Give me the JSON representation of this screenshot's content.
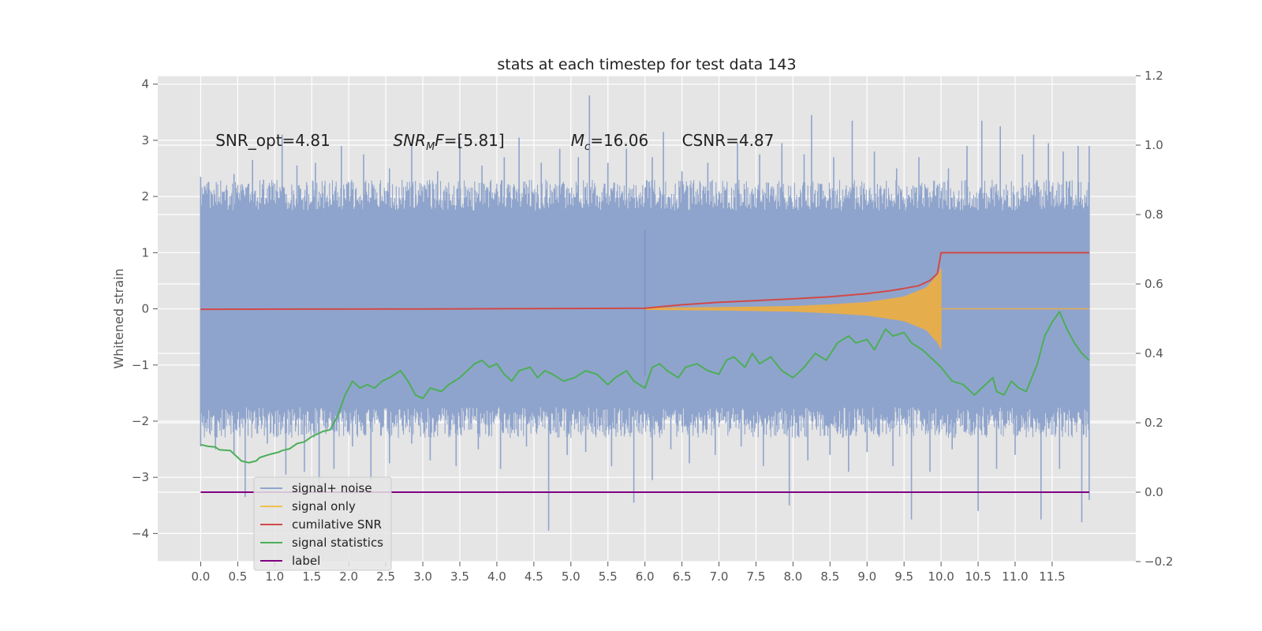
{
  "chart_data": {
    "type": "line",
    "title": "stats at each timestep for test data 143",
    "ylabel": "Whitened strain",
    "xlabel": "",
    "xlim": [
      -0.58,
      12.63
    ],
    "ylim": [
      -4.5,
      4.15
    ],
    "y2lim": [
      -0.2,
      1.2
    ],
    "x_ticks": [
      "0.0",
      "0.5",
      "1.0",
      "1.5",
      "2.0",
      "2.5",
      "3.0",
      "3.5",
      "4.0",
      "4.5",
      "5.0",
      "5.5",
      "6.0",
      "6.5",
      "7.0",
      "7.5",
      "8.0",
      "8.5",
      "9.0",
      "9.5",
      "10.0",
      "10.5",
      "11.0",
      "11.5"
    ],
    "y_ticks": [
      "4",
      "3",
      "2",
      "1",
      "0",
      "−1",
      "−2",
      "−3",
      "−4"
    ],
    "y2_ticks": [
      "1.2",
      "1.0",
      "0.8",
      "0.6",
      "0.4",
      "0.2",
      "0.0",
      "−0.2"
    ],
    "grid": true,
    "legend_position": "lower-left",
    "annotations": [
      {
        "parts": [
          {
            "t": "SNR_opt=4.81"
          }
        ],
        "x": 0.2,
        "y": 2.9
      },
      {
        "parts": [
          {
            "t": "SNR",
            "i": true
          },
          {
            "t": "M",
            "i": true,
            "sub": true
          },
          {
            "t": "F",
            "i": true
          },
          {
            "t": "=[5.81]"
          }
        ],
        "x": 2.6,
        "y": 2.9
      },
      {
        "parts": [
          {
            "t": "M",
            "i": true
          },
          {
            "t": "c",
            "i": true,
            "sub": true
          },
          {
            "t": "=16.06"
          }
        ],
        "x": 5.0,
        "y": 2.9
      },
      {
        "parts": [
          {
            "t": "CSNR=4.87"
          }
        ],
        "x": 6.5,
        "y": 2.9
      }
    ],
    "series": [
      {
        "name": "signal+ noise",
        "axis": "left",
        "color": "#8fa4cc",
        "style": "noise",
        "x_range": [
          0.0,
          12.0
        ],
        "bulk": [
          -1.75,
          1.75
        ],
        "spikes_up": [
          [
            0.0,
            2.35
          ],
          [
            0.1,
            2.15
          ],
          [
            0.3,
            2.0
          ],
          [
            0.45,
            2.4
          ],
          [
            0.7,
            2.65
          ],
          [
            0.85,
            2.3
          ],
          [
            1.1,
            3.1
          ],
          [
            1.3,
            2.55
          ],
          [
            1.55,
            2.6
          ],
          [
            1.9,
            2.9
          ],
          [
            2.2,
            2.75
          ],
          [
            2.55,
            2.5
          ],
          [
            2.85,
            2.95
          ],
          [
            3.2,
            2.45
          ],
          [
            3.5,
            3.05
          ],
          [
            3.8,
            2.55
          ],
          [
            4.1,
            2.7
          ],
          [
            4.3,
            3.05
          ],
          [
            4.6,
            2.6
          ],
          [
            4.85,
            2.85
          ],
          [
            5.1,
            2.7
          ],
          [
            5.25,
            3.8
          ],
          [
            5.5,
            2.6
          ],
          [
            5.75,
            2.85
          ],
          [
            6.1,
            2.7
          ],
          [
            6.25,
            3.15
          ],
          [
            6.5,
            2.45
          ],
          [
            6.85,
            2.6
          ],
          [
            7.25,
            2.95
          ],
          [
            7.55,
            2.75
          ],
          [
            7.85,
            2.95
          ],
          [
            8.15,
            2.75
          ],
          [
            8.25,
            3.45
          ],
          [
            8.55,
            2.7
          ],
          [
            8.8,
            3.35
          ],
          [
            9.1,
            2.8
          ],
          [
            9.4,
            2.5
          ],
          [
            9.7,
            2.7
          ],
          [
            10.1,
            2.5
          ],
          [
            10.35,
            2.9
          ],
          [
            10.55,
            3.35
          ],
          [
            10.8,
            3.25
          ],
          [
            11.1,
            2.75
          ],
          [
            11.25,
            3.1
          ],
          [
            11.45,
            2.95
          ],
          [
            11.65,
            2.8
          ],
          [
            11.85,
            2.9
          ],
          [
            12.0,
            2.9
          ]
        ],
        "spikes_down": [
          [
            0.0,
            -2.45
          ],
          [
            0.2,
            -2.5
          ],
          [
            0.45,
            -2.6
          ],
          [
            0.6,
            -3.35
          ],
          [
            0.9,
            -2.4
          ],
          [
            1.15,
            -2.95
          ],
          [
            1.4,
            -2.9
          ],
          [
            1.6,
            -3.1
          ],
          [
            1.8,
            -2.85
          ],
          [
            2.05,
            -2.45
          ],
          [
            2.3,
            -3.05
          ],
          [
            2.55,
            -2.75
          ],
          [
            2.85,
            -2.4
          ],
          [
            3.1,
            -2.7
          ],
          [
            3.45,
            -2.8
          ],
          [
            3.75,
            -2.5
          ],
          [
            4.05,
            -2.85
          ],
          [
            4.4,
            -2.45
          ],
          [
            4.7,
            -3.95
          ],
          [
            4.95,
            -2.6
          ],
          [
            5.2,
            -2.55
          ],
          [
            5.55,
            -2.8
          ],
          [
            5.85,
            -3.45
          ],
          [
            6.1,
            -3.05
          ],
          [
            6.35,
            -2.5
          ],
          [
            6.6,
            -2.75
          ],
          [
            6.95,
            -2.6
          ],
          [
            7.3,
            -2.45
          ],
          [
            7.6,
            -2.8
          ],
          [
            7.95,
            -3.5
          ],
          [
            8.2,
            -2.7
          ],
          [
            8.5,
            -2.6
          ],
          [
            8.75,
            -2.9
          ],
          [
            9.0,
            -2.55
          ],
          [
            9.35,
            -2.8
          ],
          [
            9.6,
            -3.75
          ],
          [
            9.85,
            -2.9
          ],
          [
            10.15,
            -2.5
          ],
          [
            10.5,
            -3.6
          ],
          [
            10.75,
            -2.85
          ],
          [
            11.0,
            -2.6
          ],
          [
            11.35,
            -3.75
          ],
          [
            11.6,
            -2.85
          ],
          [
            11.9,
            -3.8
          ],
          [
            12.0,
            -3.4
          ]
        ]
      },
      {
        "name": "signal only",
        "axis": "left",
        "color": "#e6ad4d",
        "style": "chirp",
        "t_merge": 10.0,
        "t_end": 12.0,
        "envelope": [
          [
            6.0,
            0.02
          ],
          [
            7.0,
            0.03
          ],
          [
            8.0,
            0.05
          ],
          [
            8.5,
            0.08
          ],
          [
            9.0,
            0.12
          ],
          [
            9.5,
            0.22
          ],
          [
            9.8,
            0.38
          ],
          [
            9.95,
            0.6
          ],
          [
            10.0,
            0.72
          ]
        ],
        "spike": [
          6.0,
          1.4,
          -1.2
        ]
      },
      {
        "name": "cumilative SNR",
        "axis": "right",
        "color": "#d04a48",
        "style": "line",
        "points": [
          [
            0.0,
            0.527
          ],
          [
            3.0,
            0.528
          ],
          [
            6.0,
            0.53
          ],
          [
            6.5,
            0.54
          ],
          [
            7.0,
            0.547
          ],
          [
            7.5,
            0.552
          ],
          [
            8.0,
            0.557
          ],
          [
            8.5,
            0.563
          ],
          [
            9.0,
            0.572
          ],
          [
            9.3,
            0.58
          ],
          [
            9.5,
            0.587
          ],
          [
            9.7,
            0.595
          ],
          [
            9.85,
            0.61
          ],
          [
            9.95,
            0.63
          ],
          [
            10.0,
            0.69
          ],
          [
            12.0,
            0.69
          ]
        ]
      },
      {
        "name": "signal statistics",
        "axis": "right",
        "color": "#4cae58",
        "style": "line",
        "points": [
          [
            0.0,
            0.137
          ],
          [
            0.1,
            0.132
          ],
          [
            0.2,
            0.13
          ],
          [
            0.25,
            0.122
          ],
          [
            0.4,
            0.12
          ],
          [
            0.5,
            0.1
          ],
          [
            0.55,
            0.09
          ],
          [
            0.65,
            0.085
          ],
          [
            0.75,
            0.09
          ],
          [
            0.8,
            0.1
          ],
          [
            0.95,
            0.11
          ],
          [
            1.05,
            0.115
          ],
          [
            1.1,
            0.12
          ],
          [
            1.2,
            0.125
          ],
          [
            1.3,
            0.14
          ],
          [
            1.4,
            0.145
          ],
          [
            1.5,
            0.16
          ],
          [
            1.65,
            0.175
          ],
          [
            1.75,
            0.18
          ],
          [
            1.85,
            0.22
          ],
          [
            1.95,
            0.28
          ],
          [
            2.05,
            0.32
          ],
          [
            2.15,
            0.3
          ],
          [
            2.25,
            0.31
          ],
          [
            2.35,
            0.3
          ],
          [
            2.45,
            0.32
          ],
          [
            2.55,
            0.33
          ],
          [
            2.7,
            0.35
          ],
          [
            2.8,
            0.32
          ],
          [
            2.9,
            0.28
          ],
          [
            3.0,
            0.27
          ],
          [
            3.1,
            0.3
          ],
          [
            3.25,
            0.29
          ],
          [
            3.35,
            0.31
          ],
          [
            3.5,
            0.33
          ],
          [
            3.6,
            0.35
          ],
          [
            3.7,
            0.37
          ],
          [
            3.8,
            0.38
          ],
          [
            3.9,
            0.36
          ],
          [
            4.0,
            0.37
          ],
          [
            4.1,
            0.34
          ],
          [
            4.2,
            0.32
          ],
          [
            4.3,
            0.35
          ],
          [
            4.45,
            0.36
          ],
          [
            4.55,
            0.33
          ],
          [
            4.65,
            0.35
          ],
          [
            4.75,
            0.34
          ],
          [
            4.9,
            0.32
          ],
          [
            5.05,
            0.33
          ],
          [
            5.2,
            0.35
          ],
          [
            5.35,
            0.34
          ],
          [
            5.5,
            0.31
          ],
          [
            5.6,
            0.33
          ],
          [
            5.75,
            0.35
          ],
          [
            5.85,
            0.32
          ],
          [
            6.0,
            0.3
          ],
          [
            6.1,
            0.36
          ],
          [
            6.2,
            0.37
          ],
          [
            6.3,
            0.35
          ],
          [
            6.45,
            0.33
          ],
          [
            6.55,
            0.36
          ],
          [
            6.7,
            0.37
          ],
          [
            6.85,
            0.35
          ],
          [
            7.0,
            0.34
          ],
          [
            7.1,
            0.38
          ],
          [
            7.2,
            0.39
          ],
          [
            7.35,
            0.36
          ],
          [
            7.45,
            0.4
          ],
          [
            7.55,
            0.37
          ],
          [
            7.7,
            0.39
          ],
          [
            7.85,
            0.35
          ],
          [
            8.0,
            0.33
          ],
          [
            8.15,
            0.36
          ],
          [
            8.3,
            0.4
          ],
          [
            8.45,
            0.38
          ],
          [
            8.6,
            0.43
          ],
          [
            8.75,
            0.45
          ],
          [
            8.85,
            0.43
          ],
          [
            9.0,
            0.44
          ],
          [
            9.1,
            0.41
          ],
          [
            9.25,
            0.47
          ],
          [
            9.35,
            0.45
          ],
          [
            9.5,
            0.46
          ],
          [
            9.6,
            0.43
          ],
          [
            9.75,
            0.41
          ],
          [
            9.85,
            0.39
          ],
          [
            10.0,
            0.36
          ],
          [
            10.15,
            0.32
          ],
          [
            10.3,
            0.31
          ],
          [
            10.45,
            0.28
          ],
          [
            10.6,
            0.31
          ],
          [
            10.7,
            0.33
          ],
          [
            10.75,
            0.29
          ],
          [
            10.85,
            0.28
          ],
          [
            10.95,
            0.32
          ],
          [
            11.05,
            0.3
          ],
          [
            11.15,
            0.29
          ],
          [
            11.3,
            0.37
          ],
          [
            11.4,
            0.45
          ],
          [
            11.5,
            0.49
          ],
          [
            11.6,
            0.52
          ],
          [
            11.7,
            0.47
          ],
          [
            11.8,
            0.43
          ],
          [
            11.9,
            0.4
          ],
          [
            12.0,
            0.38
          ]
        ]
      },
      {
        "name": "label",
        "axis": "right",
        "color": "#800080",
        "style": "line",
        "points": [
          [
            0.0,
            0.0
          ],
          [
            12.0,
            0.0
          ]
        ]
      }
    ]
  }
}
